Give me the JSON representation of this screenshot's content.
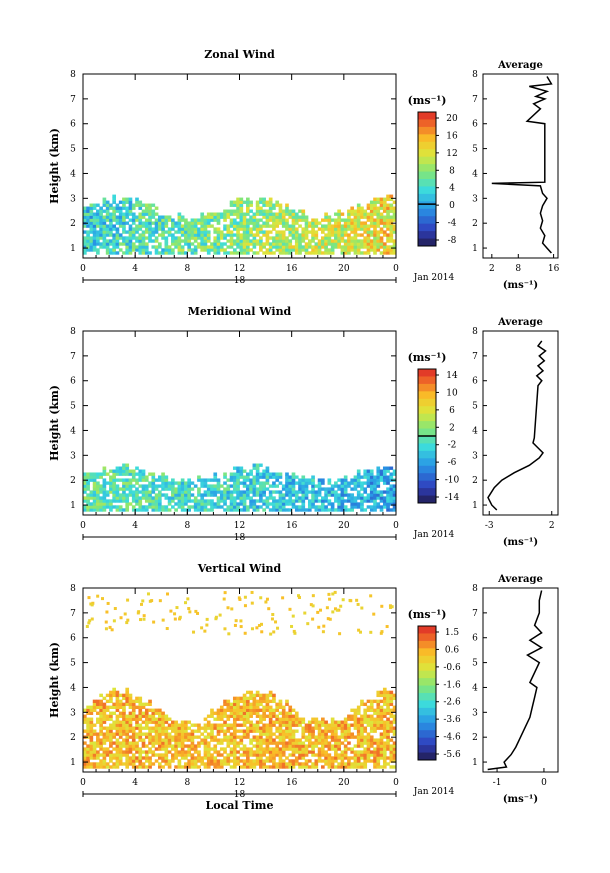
{
  "chart_data": [
    {
      "type": "heatmap",
      "title": "Zonal Wind",
      "ylabel": "Height (km)",
      "x_ticks": [
        "0",
        "4",
        "8",
        "12",
        "16",
        "20",
        "0"
      ],
      "y_ticks": [
        "1",
        "2",
        "3",
        "4",
        "5",
        "6",
        "7",
        "8"
      ],
      "date_day": "18",
      "date_month": "Jan 2014",
      "xlim": [
        0,
        24
      ],
      "ylim": [
        0.6,
        8.0
      ],
      "colorbar": {
        "unit": "(ms⁻¹)",
        "ticks": [
          "20",
          "16",
          "12",
          "8",
          "4",
          "0",
          "-4",
          "-8"
        ],
        "range": [
          -10,
          22
        ],
        "zero_line": 0
      },
      "data_hint": {
        "base": 8,
        "amp": 5,
        "ramp_per_hour": 0.45,
        "top_km": 2.6,
        "top_var": 0.4
      },
      "profile": {
        "title": "Average",
        "unit": "(ms⁻¹)",
        "x_ticks": [
          "2",
          "8",
          "16"
        ],
        "xlim": [
          0,
          17
        ],
        "y": [
          0.8,
          1.0,
          1.2,
          1.5,
          1.8,
          2.1,
          2.4,
          2.7,
          3.0,
          3.2,
          3.5,
          3.6,
          3.65,
          6.0,
          6.1,
          6.6,
          6.8,
          7.0,
          7.1,
          7.3,
          7.5,
          7.6,
          7.9
        ],
        "x": [
          15.5,
          14.5,
          13.5,
          14.0,
          13.0,
          13.5,
          13.0,
          13.5,
          14.5,
          13.5,
          13.0,
          2.0,
          14.0,
          14.0,
          10.0,
          13.0,
          11.5,
          14.0,
          12.0,
          14.5,
          10.5,
          15.5,
          14.5
        ]
      }
    },
    {
      "type": "heatmap",
      "title": "Meridional Wind",
      "ylabel": "Height (km)",
      "x_ticks": [
        "0",
        "4",
        "8",
        "12",
        "16",
        "20",
        "0"
      ],
      "y_ticks": [
        "1",
        "2",
        "3",
        "4",
        "5",
        "6",
        "7",
        "8"
      ],
      "date_day": "18",
      "date_month": "Jan 2014",
      "xlim": [
        0,
        24
      ],
      "ylim": [
        0.6,
        8.0
      ],
      "colorbar": {
        "unit": "(ms⁻¹)",
        "ticks": [
          "14",
          "10",
          "6",
          "2",
          "-2",
          "-6",
          "-10",
          "-14"
        ],
        "range": [
          -16,
          16
        ],
        "zero_line": 0
      },
      "data_hint": {
        "base": -3,
        "amp": 4,
        "ramp_per_hour": -0.25,
        "top_km": 2.2,
        "top_var": 0.3
      },
      "profile": {
        "title": "Average",
        "unit": "(ms⁻¹)",
        "x_ticks": [
          "-3",
          "2"
        ],
        "xlim": [
          -3.5,
          2.5
        ],
        "y": [
          0.8,
          1.0,
          1.3,
          1.7,
          2.0,
          2.3,
          2.6,
          2.9,
          3.1,
          3.3,
          3.5,
          3.7,
          5.8,
          6.0,
          6.2,
          6.4,
          6.6,
          6.8,
          7.0,
          7.2,
          7.4,
          7.6
        ],
        "x": [
          -2.4,
          -2.8,
          -3.1,
          -2.6,
          -2.0,
          -1.0,
          0.2,
          1.0,
          1.3,
          0.9,
          0.5,
          0.6,
          0.9,
          1.2,
          0.8,
          1.3,
          0.9,
          1.4,
          1.0,
          1.5,
          0.9,
          1.2
        ]
      }
    },
    {
      "type": "heatmap",
      "title": "Vertical Wind",
      "ylabel": "Height (km)",
      "xlabel": "Local Time",
      "x_ticks": [
        "0",
        "4",
        "8",
        "12",
        "16",
        "20",
        "0"
      ],
      "y_ticks": [
        "1",
        "2",
        "3",
        "4",
        "5",
        "6",
        "7",
        "8"
      ],
      "date_day": "18",
      "date_month": "Jan 2014",
      "xlim": [
        0,
        24
      ],
      "ylim": [
        0.6,
        8.0
      ],
      "colorbar": {
        "unit": "(ms⁻¹)",
        "ticks": [
          "1.5",
          "0.6",
          "-0.6",
          "-1.6",
          "-2.6",
          "-3.6",
          "-4.6",
          "-5.6"
        ],
        "range": [
          -6.0,
          2.0
        ],
        "zero_line": null
      },
      "data_hint": {
        "base": 0.3,
        "amp": 0.9,
        "ramp_per_hour": 0.0,
        "top_km": 3.2,
        "top_var": 0.6
      },
      "profile": {
        "title": "Average",
        "unit": "(ms⁻¹)",
        "x_ticks": [
          "-1",
          "0"
        ],
        "xlim": [
          -1.3,
          0.3
        ],
        "y": [
          0.7,
          0.8,
          1.0,
          1.3,
          1.6,
          2.0,
          2.4,
          2.8,
          3.2,
          3.6,
          4.0,
          4.2,
          5.0,
          5.3,
          5.6,
          5.9,
          6.2,
          6.5,
          7.0,
          7.5,
          7.9
        ],
        "x": [
          -1.2,
          -0.8,
          -0.85,
          -0.7,
          -0.6,
          -0.5,
          -0.4,
          -0.3,
          -0.25,
          -0.2,
          -0.15,
          -0.3,
          -0.1,
          -0.35,
          -0.05,
          -0.3,
          -0.05,
          -0.2,
          -0.1,
          -0.1,
          -0.05
        ]
      }
    }
  ]
}
